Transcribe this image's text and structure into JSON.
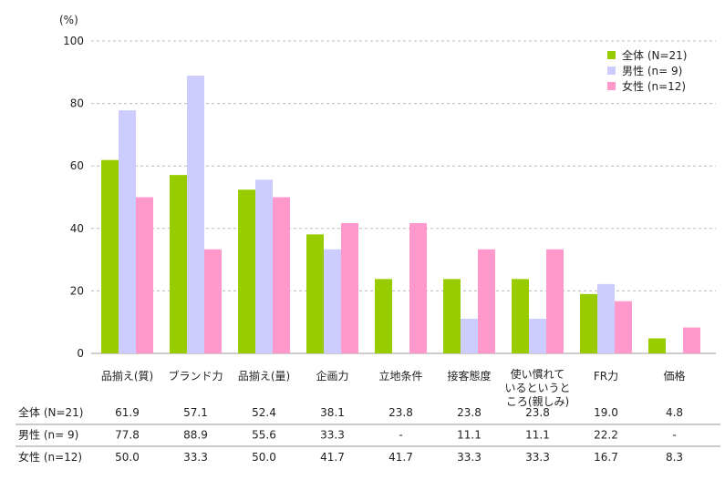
{
  "chart_data": {
    "type": "bar",
    "yunit": "(%)",
    "ylim": [
      0,
      100
    ],
    "yticks": [
      0,
      20,
      40,
      60,
      80,
      100
    ],
    "grid": true,
    "legend_position": "top-right",
    "categories": [
      "品揃え(質)",
      "ブランド力",
      "品揃え(量)",
      "企画力",
      "立地条件",
      "接客態度",
      "使い慣れて|いるというと|ころ(親しみ)",
      "FR力",
      "価格"
    ],
    "series": [
      {
        "name": "全体 (N=21)",
        "color": "#99cc00",
        "values": [
          61.9,
          57.1,
          52.4,
          38.1,
          23.8,
          23.8,
          23.8,
          19.0,
          4.8
        ],
        "labels": [
          "61.9",
          "57.1",
          "52.4",
          "38.1",
          "23.8",
          "23.8",
          "23.8",
          "19.0",
          "4.8"
        ]
      },
      {
        "name": "男性 (n= 9)",
        "color": "#ccccff",
        "values": [
          77.8,
          88.9,
          55.6,
          33.3,
          null,
          11.1,
          11.1,
          22.2,
          null
        ],
        "labels": [
          "77.8",
          "88.9",
          "55.6",
          "33.3",
          "-",
          "11.1",
          "11.1",
          "22.2",
          "-"
        ]
      },
      {
        "name": "女性 (n=12)",
        "color": "#ff99cc",
        "values": [
          50.0,
          33.3,
          50.0,
          41.7,
          41.7,
          33.3,
          33.3,
          16.7,
          8.3
        ],
        "labels": [
          "50.0",
          "33.3",
          "50.0",
          "41.7",
          "41.7",
          "33.3",
          "33.3",
          "16.7",
          "8.3"
        ]
      }
    ],
    "table_row_labels": [
      "全体 (N=21)",
      "男性 (n= 9)",
      "女性 (n=12)"
    ]
  }
}
